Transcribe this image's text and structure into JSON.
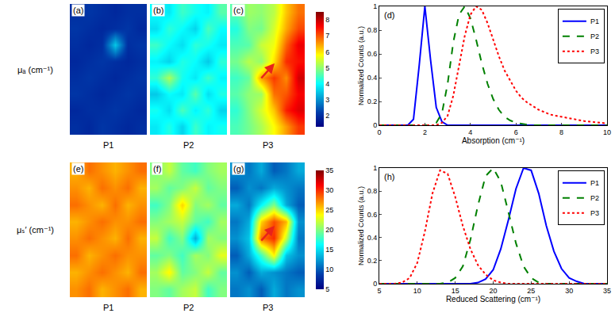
{
  "chart_data": [
    {
      "type": "heatmap",
      "title": "(a)",
      "label": "P1",
      "ylabel": "μₐ (cm⁻¹)",
      "color": "Jet",
      "tick_labels": false,
      "zlim": [
        1.3,
        8.5
      ],
      "zticks": [
        2,
        3,
        4,
        5,
        6,
        7,
        8
      ],
      "z": [
        [
          2.0,
          1.9,
          2.1,
          2.0,
          1.9,
          2.0
        ],
        [
          1.9,
          2.0,
          2.0,
          2.1,
          2.0,
          1.9
        ],
        [
          2.1,
          2.0,
          1.9,
          2.0,
          2.1,
          2.0
        ],
        [
          2.0,
          2.1,
          2.0,
          1.9,
          2.0,
          2.1
        ],
        [
          1.9,
          2.0,
          2.1,
          2.0,
          1.9,
          2.0
        ],
        [
          2.0,
          1.9,
          2.0,
          3.5,
          2.0,
          2.1
        ],
        [
          2.1,
          2.0,
          1.9,
          2.0,
          2.1,
          1.9
        ],
        [
          2.0,
          2.1,
          2.0,
          1.9,
          2.0,
          2.0
        ]
      ]
    },
    {
      "type": "heatmap",
      "title": "(b)",
      "label": "P2",
      "color": "Jet",
      "tick_labels": false,
      "zlim": [
        1.3,
        8.5
      ],
      "zticks": [
        2,
        3,
        4,
        5,
        6,
        7,
        8
      ],
      "z": [
        [
          3.8,
          4.2,
          3.6,
          4.4,
          3.9,
          4.1
        ],
        [
          4.1,
          3.7,
          4.5,
          3.9,
          4.3,
          3.6
        ],
        [
          3.5,
          4.0,
          3.8,
          4.6,
          3.7,
          4.2
        ],
        [
          4.3,
          5.2,
          4.1,
          3.8,
          4.4,
          3.9
        ],
        [
          3.9,
          3.6,
          4.2,
          4.0,
          3.5,
          4.3
        ],
        [
          4.4,
          4.0,
          3.7,
          4.3,
          4.1,
          3.8
        ],
        [
          3.7,
          4.3,
          4.0,
          3.6,
          4.5,
          4.0
        ],
        [
          4.0,
          3.8,
          4.4,
          4.1,
          3.9,
          4.6
        ]
      ]
    },
    {
      "type": "heatmap",
      "title": "(c)",
      "label": "P3",
      "color": "Jet",
      "tick_labels": false,
      "zlim": [
        1.3,
        8.5
      ],
      "zticks": [
        2,
        3,
        4,
        5,
        6,
        7,
        8
      ],
      "z": [
        [
          4.5,
          4.8,
          5.2,
          5.8,
          6.5,
          7.2
        ],
        [
          4.3,
          4.9,
          5.5,
          6.2,
          7.4,
          7.8
        ],
        [
          4.6,
          5.0,
          5.1,
          6.8,
          7.0,
          7.6
        ],
        [
          4.4,
          4.7,
          6.5,
          7.2,
          6.6,
          7.9
        ],
        [
          4.8,
          5.3,
          5.0,
          6.0,
          7.3,
          7.5
        ],
        [
          4.5,
          4.6,
          5.4,
          5.7,
          6.9,
          7.7
        ],
        [
          4.2,
          4.9,
          4.8,
          5.5,
          6.4,
          7.1
        ],
        [
          4.6,
          5.1,
          5.0,
          5.3,
          6.2,
          6.8
        ]
      ]
    },
    {
      "type": "line",
      "title": "(d)",
      "xlabel": "Absorption (cm⁻¹)",
      "ylabel": "Normalized Counts (a.u.)",
      "xlim": [
        0,
        10
      ],
      "xticks": [
        0,
        2,
        4,
        6,
        8,
        10
      ],
      "ylim": [
        0,
        1
      ],
      "yticks": [
        0,
        0.2,
        0.4,
        0.6,
        0.8,
        1
      ],
      "legend": "upper right",
      "x": [
        0,
        0.25,
        0.5,
        0.75,
        1,
        1.25,
        1.5,
        1.75,
        2,
        2.25,
        2.5,
        2.75,
        3,
        3.25,
        3.5,
        3.75,
        4,
        4.25,
        4.5,
        4.75,
        5,
        5.25,
        5.5,
        5.75,
        6,
        6.25,
        6.5,
        6.75,
        7,
        7.25,
        7.5,
        7.75,
        8,
        8.25,
        8.5,
        8.75,
        9,
        9.25,
        9.5,
        9.75,
        10
      ],
      "series": [
        {
          "name": "P1",
          "color": "#0000ff",
          "line_style": "solid",
          "values": [
            0,
            0,
            0,
            0,
            0,
            0,
            0.05,
            0.5,
            1.0,
            0.55,
            0.15,
            0.03,
            0,
            0,
            0,
            0,
            0,
            0,
            0,
            0,
            0,
            0,
            0,
            0,
            0,
            0,
            0,
            0,
            0,
            0,
            0,
            0,
            0,
            0,
            0,
            0,
            0,
            0,
            0,
            0,
            0
          ]
        },
        {
          "name": "P2",
          "color": "#008000",
          "line_style": "dash",
          "values": [
            0,
            0,
            0,
            0,
            0,
            0,
            0,
            0,
            0,
            0,
            0.02,
            0.1,
            0.35,
            0.7,
            0.93,
            1.0,
            0.9,
            0.72,
            0.52,
            0.35,
            0.22,
            0.13,
            0.07,
            0.04,
            0.02,
            0.01,
            0.005,
            0,
            0,
            0,
            0,
            0,
            0,
            0,
            0,
            0,
            0,
            0,
            0,
            0,
            0
          ]
        },
        {
          "name": "P3",
          "color": "#ff0000",
          "line_style": "dot",
          "values": [
            0,
            0,
            0,
            0,
            0,
            0,
            0,
            0,
            0,
            0,
            0,
            0.02,
            0.08,
            0.25,
            0.5,
            0.75,
            0.93,
            1.0,
            0.97,
            0.86,
            0.72,
            0.58,
            0.46,
            0.37,
            0.29,
            0.23,
            0.19,
            0.16,
            0.13,
            0.11,
            0.09,
            0.08,
            0.07,
            0.06,
            0.05,
            0.04,
            0.035,
            0.03,
            0.025,
            0.02,
            0.015
          ]
        }
      ]
    },
    {
      "type": "heatmap",
      "title": "(e)",
      "label": "P1",
      "ylabel": "μₛ′ (cm⁻¹)",
      "color": "Jet",
      "tick_labels": false,
      "zlim": [
        5,
        35
      ],
      "zticks": [
        5,
        10,
        15,
        20,
        25,
        30,
        35
      ],
      "z": [
        [
          27,
          28,
          26,
          27,
          28,
          26
        ],
        [
          26,
          27,
          28,
          27,
          26,
          28
        ],
        [
          28,
          26,
          27,
          28,
          27,
          27
        ],
        [
          27,
          28,
          27,
          26,
          28,
          26
        ],
        [
          26,
          27,
          28,
          27,
          27,
          28
        ],
        [
          28,
          27,
          26,
          28,
          26,
          27
        ],
        [
          27,
          26,
          28,
          27,
          28,
          26
        ],
        [
          26,
          28,
          27,
          26,
          27,
          28
        ]
      ]
    },
    {
      "type": "heatmap",
      "title": "(f)",
      "label": "P2",
      "color": "Jet",
      "tick_labels": false,
      "zlim": [
        5,
        35
      ],
      "zticks": [
        5,
        10,
        15,
        20,
        25,
        30,
        35
      ],
      "z": [
        [
          20,
          19,
          21,
          22,
          18,
          20
        ],
        [
          21,
          24,
          19,
          20,
          22,
          19
        ],
        [
          19,
          20,
          18,
          21,
          20,
          23
        ],
        [
          22,
          18,
          20,
          13,
          21,
          20
        ],
        [
          20,
          21,
          22,
          19,
          18,
          21
        ],
        [
          18,
          20,
          25,
          20,
          21,
          19
        ],
        [
          21,
          19,
          20,
          22,
          19,
          20
        ],
        [
          20,
          22,
          19,
          18,
          20,
          21
        ]
      ]
    },
    {
      "type": "heatmap",
      "title": "(g)",
      "label": "P3",
      "color": "Jet",
      "tick_labels": false,
      "zlim": [
        5,
        35
      ],
      "zticks": [
        5,
        10,
        15,
        20,
        25,
        30,
        35
      ],
      "z": [
        [
          11,
          12,
          10,
          13,
          11,
          12
        ],
        [
          12,
          10,
          13,
          12,
          11,
          10
        ],
        [
          10,
          13,
          18,
          24,
          14,
          12
        ],
        [
          12,
          14,
          28,
          30,
          22,
          11
        ],
        [
          11,
          13,
          25,
          29,
          26,
          12
        ],
        [
          13,
          11,
          16,
          20,
          13,
          10
        ],
        [
          10,
          12,
          11,
          13,
          12,
          11
        ],
        [
          12,
          11,
          13,
          10,
          11,
          13
        ]
      ]
    },
    {
      "type": "line",
      "title": "(h)",
      "xlabel": "Reduced Scattering (cm⁻¹)",
      "ylabel": "Normalized Counts (a.u.)",
      "xlim": [
        5,
        35
      ],
      "xticks": [
        5,
        10,
        15,
        20,
        25,
        30,
        35
      ],
      "ylim": [
        0,
        1
      ],
      "yticks": [
        0,
        0.2,
        0.4,
        0.6,
        0.8,
        1
      ],
      "legend": "upper right",
      "x": [
        5,
        6,
        7,
        8,
        9,
        10,
        11,
        12,
        13,
        14,
        15,
        16,
        17,
        18,
        19,
        20,
        21,
        22,
        23,
        24,
        25,
        26,
        27,
        28,
        29,
        30,
        31,
        32,
        33,
        34,
        35
      ],
      "series": [
        {
          "name": "P1",
          "color": "#0000ff",
          "line_style": "solid",
          "values": [
            0,
            0,
            0,
            0,
            0,
            0,
            0,
            0,
            0,
            0,
            0,
            0,
            0,
            0.01,
            0.04,
            0.12,
            0.3,
            0.55,
            0.82,
            1.0,
            0.98,
            0.78,
            0.5,
            0.28,
            0.13,
            0.05,
            0.02,
            0,
            0,
            0,
            0
          ]
        },
        {
          "name": "P2",
          "color": "#008000",
          "line_style": "dash",
          "values": [
            0,
            0,
            0,
            0,
            0,
            0,
            0,
            0,
            0,
            0.01,
            0.05,
            0.15,
            0.38,
            0.68,
            0.93,
            1.0,
            0.88,
            0.62,
            0.35,
            0.15,
            0.05,
            0.01,
            0,
            0,
            0,
            0,
            0,
            0,
            0,
            0,
            0
          ]
        },
        {
          "name": "P3",
          "color": "#ff0000",
          "line_style": "dot",
          "values": [
            0,
            0,
            0,
            0.01,
            0.05,
            0.18,
            0.45,
            0.78,
            0.98,
            0.95,
            0.75,
            0.5,
            0.3,
            0.16,
            0.08,
            0.03,
            0.01,
            0,
            0,
            0,
            0,
            0,
            0,
            0,
            0,
            0,
            0,
            0,
            0,
            0,
            0
          ]
        }
      ]
    }
  ]
}
